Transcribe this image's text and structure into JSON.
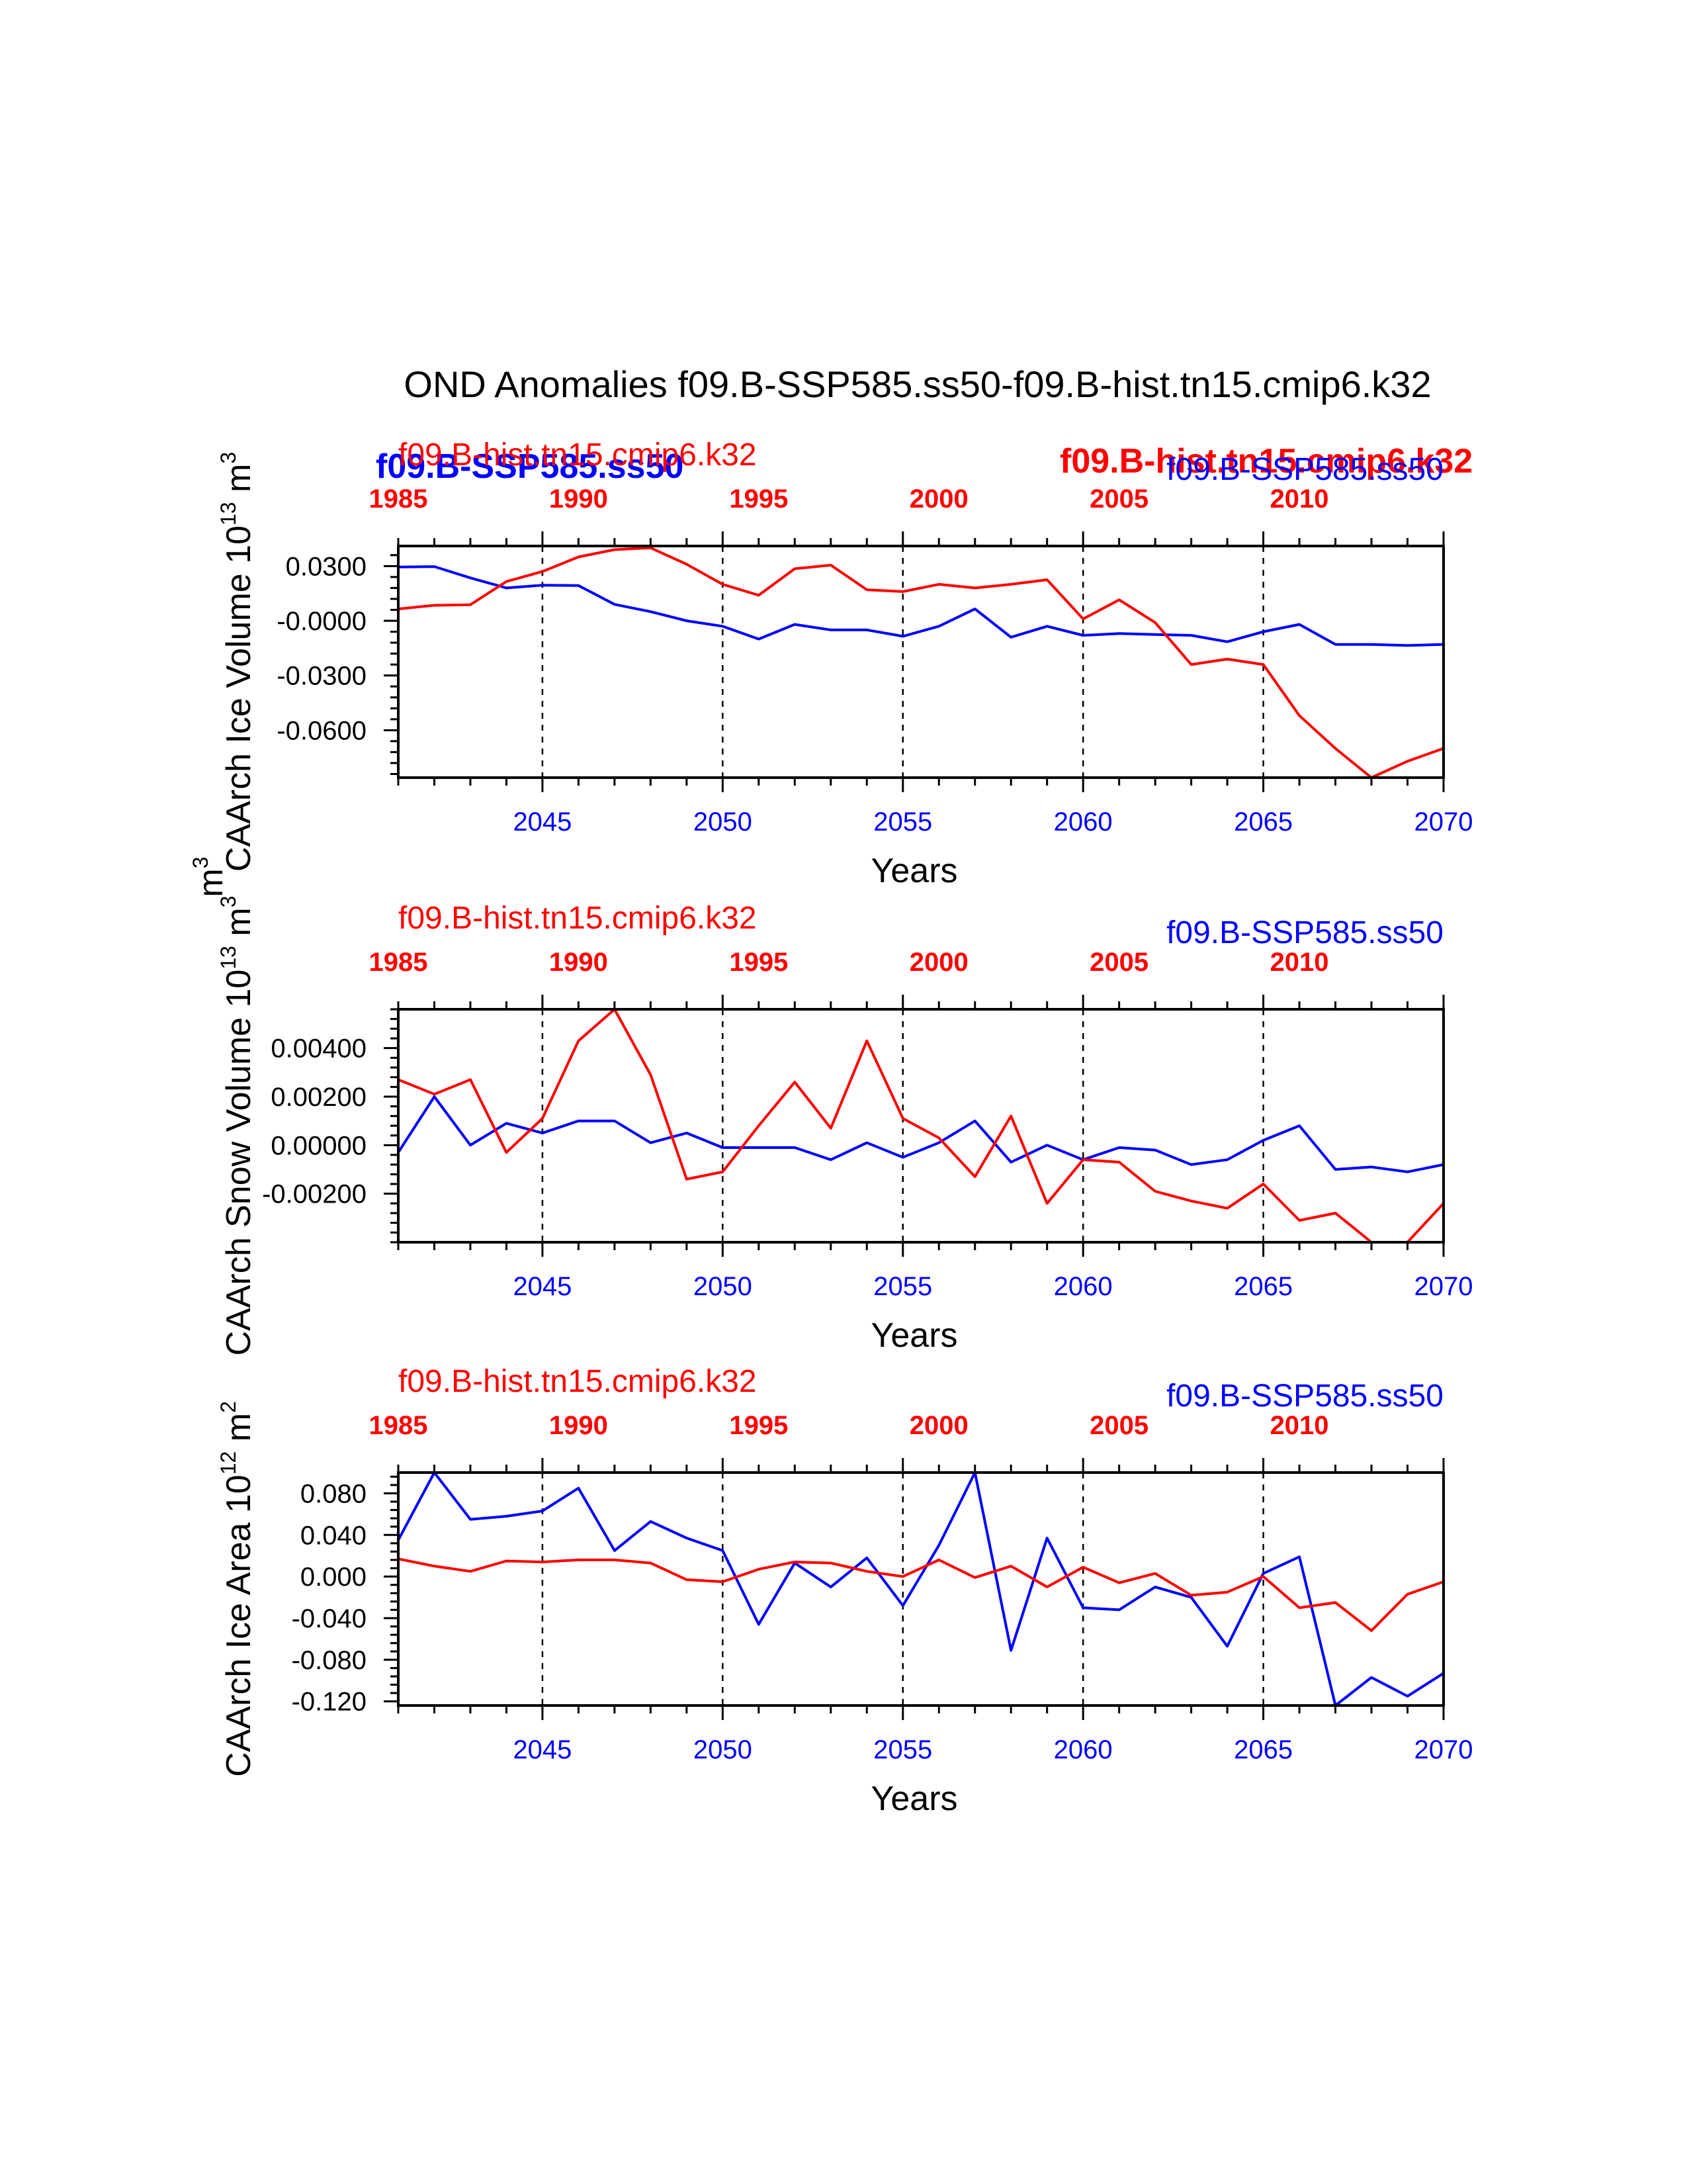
{
  "title": "OND Anomalies f09.B-SSP585.ss50-f09.B-hist.tn15.cmip6.k32",
  "colors": {
    "blue": "#0000ff",
    "red": "#ff0000",
    "axis": "#000000"
  },
  "overlay_labels": {
    "top_left_blue_bold": "f09.B-SSP585.ss50",
    "top_right_red_bold": "f09.B-hist.tn15.cmip6.k32"
  },
  "chart_data": [
    {
      "type": "line",
      "ylabel": "CAArch Ice Volume 10",
      "ylabel_exp": "13",
      "ylabel_unit": " m",
      "ylabel_unit_exp": "3",
      "xlabel": "Years",
      "legend_red": "f09.B-hist.tn15.cmip6.k32",
      "legend_blue": "f09.B-SSP585.ss50",
      "ylim": [
        -0.086,
        0.041
      ],
      "yticks": [
        -0.06,
        -0.03,
        0.0,
        0.03
      ],
      "ytick_labels": [
        "-0.0600",
        "-0.0300",
        "-0.0000",
        "0.0300"
      ],
      "ylabel_side_extra": "m",
      "ylabel_side_extra_exp": "3",
      "x_bottom": [
        2041,
        2042,
        2043,
        2044,
        2045,
        2046,
        2047,
        2048,
        2049,
        2050,
        2051,
        2052,
        2053,
        2054,
        2055,
        2056,
        2057,
        2058,
        2059,
        2060,
        2061,
        2062,
        2063,
        2064,
        2065,
        2066,
        2067,
        2068,
        2069,
        2070
      ],
      "xtick_labels_bottom": [
        "2045",
        "2050",
        "2055",
        "2060",
        "2065",
        "2070"
      ],
      "xtick_labels_top": [
        "1985",
        "1990",
        "1995",
        "2000",
        "2005",
        "2010"
      ],
      "series": [
        {
          "name": "f09.B-SSP585.ss50",
          "color": "blue",
          "values": [
            0.0295,
            0.0297,
            0.0235,
            0.018,
            0.0195,
            0.0193,
            0.009,
            0.005,
            0.0,
            -0.003,
            -0.01,
            -0.002,
            -0.005,
            -0.005,
            -0.0085,
            -0.003,
            0.0065,
            -0.009,
            -0.003,
            -0.008,
            -0.007,
            -0.0075,
            -0.008,
            -0.0115,
            -0.006,
            -0.002,
            -0.013,
            -0.013,
            -0.0135,
            -0.013
          ]
        },
        {
          "name": "f09.B-hist.tn15.cmip6.k32",
          "color": "red",
          "values": [
            0.0065,
            0.0085,
            0.0088,
            0.0215,
            0.027,
            0.035,
            0.039,
            0.04,
            0.031,
            0.02,
            0.014,
            0.0285,
            0.0305,
            0.017,
            0.016,
            0.02,
            0.018,
            0.02,
            0.0225,
            0.001,
            0.0115,
            -0.001,
            -0.024,
            -0.021,
            -0.024,
            -0.052,
            -0.07,
            -0.086,
            -0.077,
            -0.07
          ]
        }
      ]
    },
    {
      "type": "line",
      "ylabel": "CAArch Snow Volume 10",
      "ylabel_exp": "13",
      "ylabel_unit": " m",
      "ylabel_unit_exp": "3",
      "xlabel": "Years",
      "legend_red": "f09.B-hist.tn15.cmip6.k32",
      "legend_blue": "f09.B-SSP585.ss50",
      "ylim": [
        -0.004,
        0.0056
      ],
      "yticks": [
        -0.002,
        0.0,
        0.002,
        0.004
      ],
      "ytick_labels": [
        "-0.00200",
        "0.00000",
        "0.00200",
        "0.00400"
      ],
      "x_bottom": [
        2041,
        2042,
        2043,
        2044,
        2045,
        2046,
        2047,
        2048,
        2049,
        2050,
        2051,
        2052,
        2053,
        2054,
        2055,
        2056,
        2057,
        2058,
        2059,
        2060,
        2061,
        2062,
        2063,
        2064,
        2065,
        2066,
        2067,
        2068,
        2069,
        2070
      ],
      "xtick_labels_bottom": [
        "2045",
        "2050",
        "2055",
        "2060",
        "2065",
        "2070"
      ],
      "xtick_labels_top": [
        "1985",
        "1990",
        "1995",
        "2000",
        "2005",
        "2010"
      ],
      "series": [
        {
          "name": "f09.B-SSP585.ss50",
          "color": "blue",
          "values": [
            -0.0003,
            0.002,
            0.0,
            0.0009,
            0.0005,
            0.001,
            0.001,
            0.0001,
            0.0005,
            -0.0001,
            -0.0001,
            -0.0001,
            -0.0006,
            0.0001,
            -0.0005,
            0.0001,
            0.001,
            -0.0007,
            0.0,
            -0.0006,
            -0.0001,
            -0.0002,
            -0.0008,
            -0.0006,
            0.0002,
            0.0008,
            -0.001,
            -0.0009,
            -0.0011,
            -0.0008
          ]
        },
        {
          "name": "f09.B-hist.tn15.cmip6.k32",
          "color": "red",
          "values": [
            0.0027,
            0.0021,
            0.0027,
            -0.0003,
            0.0011,
            0.0043,
            0.0056,
            0.0029,
            -0.0014,
            -0.0011,
            0.0008,
            0.0026,
            0.0007,
            0.0043,
            0.0011,
            0.0003,
            -0.0013,
            0.0012,
            -0.0024,
            -0.0006,
            -0.0007,
            -0.0019,
            -0.0023,
            -0.0026,
            -0.0016,
            -0.0031,
            -0.0028,
            -0.004,
            -0.004,
            -0.0024
          ]
        }
      ]
    },
    {
      "type": "line",
      "ylabel": "CAArch Ice Area 10",
      "ylabel_exp": "12",
      "ylabel_unit": " m",
      "ylabel_unit_exp": "2",
      "xlabel": "Years",
      "legend_red": "f09.B-hist.tn15.cmip6.k32",
      "legend_blue": "f09.B-SSP585.ss50",
      "ylim": [
        -0.124,
        0.1
      ],
      "yticks": [
        -0.12,
        -0.08,
        -0.04,
        0.0,
        0.04,
        0.08
      ],
      "ytick_labels": [
        "-0.120",
        "-0.080",
        "-0.040",
        "0.000",
        "0.040",
        "0.080"
      ],
      "x_bottom": [
        2041,
        2042,
        2043,
        2044,
        2045,
        2046,
        2047,
        2048,
        2049,
        2050,
        2051,
        2052,
        2053,
        2054,
        2055,
        2056,
        2057,
        2058,
        2059,
        2060,
        2061,
        2062,
        2063,
        2064,
        2065,
        2066,
        2067,
        2068,
        2069,
        2070
      ],
      "xtick_labels_bottom": [
        "2045",
        "2050",
        "2055",
        "2060",
        "2065",
        "2070"
      ],
      "xtick_labels_top": [
        "1985",
        "1990",
        "1995",
        "2000",
        "2005",
        "2010"
      ],
      "series": [
        {
          "name": "f09.B-SSP585.ss50",
          "color": "blue",
          "values": [
            0.035,
            0.1,
            0.055,
            0.058,
            0.063,
            0.085,
            0.025,
            0.053,
            0.037,
            0.025,
            -0.046,
            0.013,
            -0.01,
            0.018,
            -0.028,
            0.03,
            0.1,
            -0.071,
            0.037,
            -0.03,
            -0.032,
            -0.01,
            -0.02,
            -0.067,
            0.003,
            0.019,
            -0.124,
            -0.097,
            -0.115,
            -0.093
          ]
        },
        {
          "name": "f09.B-hist.tn15.cmip6.k32",
          "color": "red",
          "values": [
            0.017,
            0.01,
            0.005,
            0.015,
            0.014,
            0.016,
            0.016,
            0.013,
            -0.003,
            -0.005,
            0.007,
            0.014,
            0.013,
            0.005,
            0.0,
            0.016,
            -0.001,
            0.01,
            -0.01,
            0.009,
            -0.006,
            0.003,
            -0.018,
            -0.015,
            0.0,
            -0.03,
            -0.025,
            -0.052,
            -0.017,
            -0.005
          ]
        }
      ]
    }
  ]
}
